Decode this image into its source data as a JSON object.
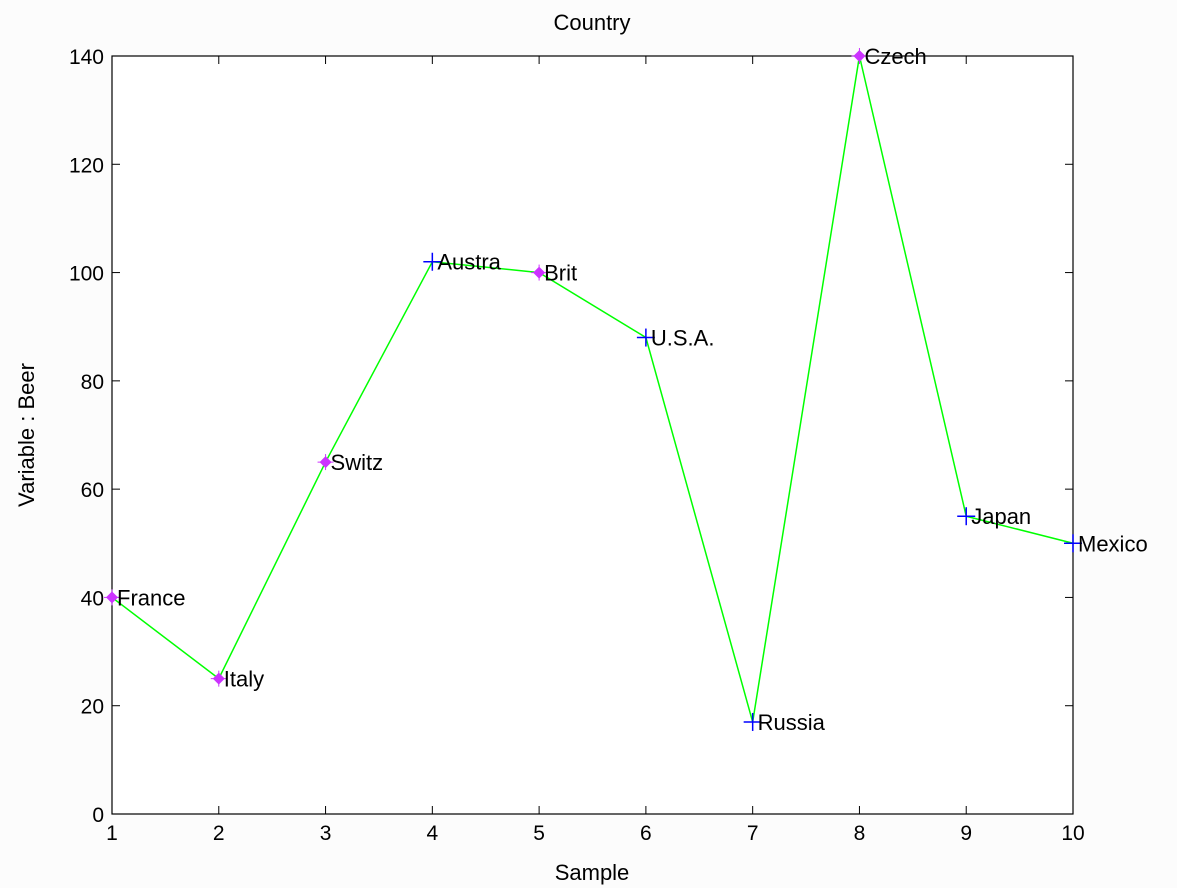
{
  "chart_data": {
    "type": "line",
    "title": "Country",
    "xlabel": "Sample",
    "ylabel": "Variable : Beer",
    "xlim": [
      1,
      10
    ],
    "ylim": [
      0,
      140
    ],
    "xticks": [
      1,
      2,
      3,
      4,
      5,
      6,
      7,
      8,
      9,
      10
    ],
    "yticks": [
      0,
      20,
      40,
      60,
      80,
      100,
      120,
      140
    ],
    "grid": false,
    "line_color": "#00ff00",
    "points": [
      {
        "x": 1,
        "y": 40,
        "label": "France",
        "marker": "diamond",
        "color": "#cc33ff"
      },
      {
        "x": 2,
        "y": 25,
        "label": "Italy",
        "marker": "diamond",
        "color": "#cc33ff"
      },
      {
        "x": 3,
        "y": 65,
        "label": "Switz",
        "marker": "diamond",
        "color": "#cc33ff"
      },
      {
        "x": 4,
        "y": 102,
        "label": "Austra",
        "marker": "plus",
        "color": "#0000ff"
      },
      {
        "x": 5,
        "y": 100,
        "label": "Brit",
        "marker": "diamond",
        "color": "#cc33ff"
      },
      {
        "x": 6,
        "y": 88,
        "label": "U.S.A.",
        "marker": "plus",
        "color": "#0000ff"
      },
      {
        "x": 7,
        "y": 17,
        "label": "Russia",
        "marker": "plus",
        "color": "#0000ff"
      },
      {
        "x": 8,
        "y": 140,
        "label": "Czech",
        "marker": "diamond",
        "color": "#cc33ff"
      },
      {
        "x": 9,
        "y": 55,
        "label": "Japan",
        "marker": "plus",
        "color": "#0000ff"
      },
      {
        "x": 10,
        "y": 50,
        "label": "Mexico",
        "marker": "plus",
        "color": "#0000ff"
      }
    ]
  }
}
